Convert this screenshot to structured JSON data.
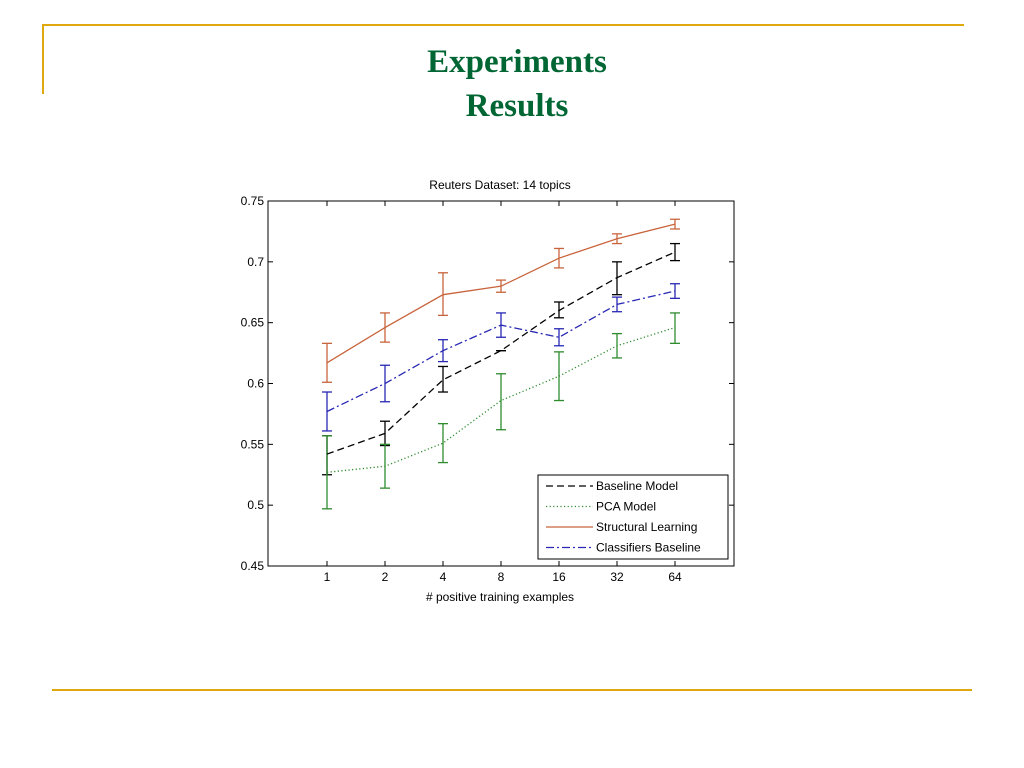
{
  "slide": {
    "title_line1": "Experiments",
    "title_line2": "Results",
    "title_color": "#006633",
    "frame_color": "#E0A80F"
  },
  "chart_data": {
    "type": "line",
    "title": "Reuters Dataset: 14 topics",
    "xlabel": "# positive training examples",
    "ylabel": "",
    "categories": [
      "1",
      "2",
      "4",
      "8",
      "16",
      "32",
      "64"
    ],
    "ylim": [
      0.45,
      0.75
    ],
    "yticks": [
      "0.45",
      "0.5",
      "0.55",
      "0.6",
      "0.65",
      "0.7",
      "0.75"
    ],
    "grid": false,
    "legend_position": "bottom-right",
    "series": [
      {
        "name": "Baseline Model",
        "style": "dashed",
        "color": "#000000",
        "values": [
          0.542,
          0.559,
          0.603,
          0.627,
          0.66,
          0.687,
          0.708
        ],
        "err_low": [
          0.525,
          0.549,
          0.593,
          0.627,
          0.654,
          0.673,
          0.701
        ],
        "err_high": [
          0.557,
          0.569,
          0.614,
          0.627,
          0.667,
          0.7,
          0.715
        ]
      },
      {
        "name": "PCA Model",
        "style": "dotted",
        "color": "#2E8B2E",
        "values": [
          0.527,
          0.532,
          0.551,
          0.586,
          0.606,
          0.631,
          0.646
        ],
        "err_low": [
          0.497,
          0.514,
          0.535,
          0.562,
          0.586,
          0.621,
          0.633
        ],
        "err_high": [
          0.557,
          0.55,
          0.567,
          0.608,
          0.626,
          0.641,
          0.658
        ]
      },
      {
        "name": "Structural Learning",
        "style": "solid",
        "color": "#C8643C",
        "values": [
          0.617,
          0.646,
          0.673,
          0.68,
          0.703,
          0.719,
          0.731
        ],
        "err_low": [
          0.601,
          0.634,
          0.656,
          0.675,
          0.695,
          0.715,
          0.727
        ],
        "err_high": [
          0.633,
          0.658,
          0.691,
          0.685,
          0.711,
          0.723,
          0.735
        ]
      },
      {
        "name": "Classifiers Baseline",
        "style": "dashdot",
        "color": "#2828B4",
        "values": [
          0.577,
          0.6,
          0.627,
          0.648,
          0.638,
          0.665,
          0.676
        ],
        "err_low": [
          0.561,
          0.585,
          0.618,
          0.638,
          0.631,
          0.659,
          0.67
        ],
        "err_high": [
          0.593,
          0.615,
          0.636,
          0.658,
          0.645,
          0.671,
          0.682
        ]
      }
    ]
  }
}
